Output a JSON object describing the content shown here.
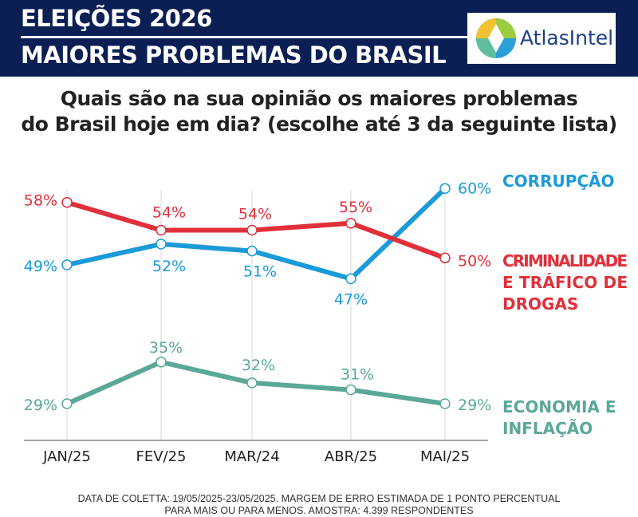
{
  "header": {
    "line1": "ELEIÇÕES 2026",
    "line2": "MAIORES PROBLEMAS DO BRASIL",
    "logo_text": "AtlasIntel",
    "bg_color": "#0b1f55"
  },
  "question": {
    "line1": "Quais são na sua opinião os maiores problemas",
    "line2": "do Brasil hoje em dia? (escolhe até 3 da seguinte lista)"
  },
  "footer": {
    "line1": "DATA DE COLETTA: 19/05/2025-23/05/2025. MARGEM DE ERRO ESTIMADA DE 1 PONTO PERCENTUAL",
    "line2": "PARA MAIS OU PARA MENOS. AMOSTRA: 4.399 RESPONDENTES"
  },
  "chart_data": {
    "type": "line",
    "categories": [
      "JAN/25",
      "FEV/25",
      "MAR/24",
      "ABR/25",
      "MAI/25"
    ],
    "series": [
      {
        "name": "CORRUPÇÃO",
        "values": [
          49,
          52,
          51,
          47,
          60
        ],
        "color": "#1a9ad9",
        "labels": [
          "49%",
          "52%",
          "51%",
          "47%",
          "60%"
        ]
      },
      {
        "name": "CRIMINALIDADE E TRÁFICO DE DROGAS",
        "values": [
          58,
          54,
          54,
          55,
          50
        ],
        "color": "#e0303a",
        "labels": [
          "58%",
          "54%",
          "54%",
          "55%",
          "50%"
        ]
      },
      {
        "name": "ECONOMIA E INFLAÇÃO",
        "values": [
          29,
          35,
          32,
          31,
          29
        ],
        "color": "#5aa898",
        "labels": [
          "29%",
          "35%",
          "32%",
          "31%",
          "29%"
        ]
      }
    ],
    "legend": {
      "corrupcao": [
        "CORRUPÇÃO"
      ],
      "criminalidade": [
        "CRIMINALIDADE",
        "E TRÁFICO DE",
        "DROGAS"
      ],
      "economia": [
        "ECONOMIA E",
        "INFLAÇÃO"
      ]
    },
    "ylim": [
      25,
      62
    ],
    "grid": "vertical"
  }
}
